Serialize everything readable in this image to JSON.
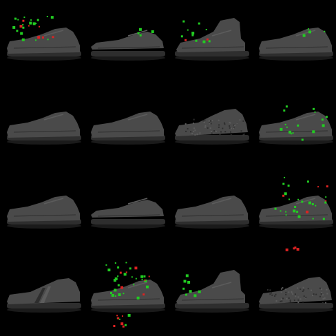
{
  "grid": {
    "rows": 4,
    "cols": 4,
    "background": "#000000",
    "shoe_colors": {
      "upper": "#4a4a4a",
      "sole": "#2e2e2e",
      "shadow": "#1a1a1a",
      "highlight": "#5c5c5c"
    },
    "marker_colors": {
      "positive": "#22cc22",
      "negative": "#dd2222"
    }
  },
  "tiles": [
    {
      "shoe": "low-top",
      "attribution": "heavy-top-left"
    },
    {
      "shoe": "slim-low",
      "attribution": "light"
    },
    {
      "shoe": "high-top",
      "attribution": "top-left"
    },
    {
      "shoe": "low-top",
      "attribution": "light"
    },
    {
      "shoe": "low-top",
      "attribution": "none"
    },
    {
      "shoe": "low-top",
      "attribution": "none"
    },
    {
      "shoe": "textured-low",
      "attribution": "none"
    },
    {
      "shoe": "low-top",
      "attribution": "right-cluster"
    },
    {
      "shoe": "low-top",
      "attribution": "none"
    },
    {
      "shoe": "slim-low",
      "attribution": "none"
    },
    {
      "shoe": "low-top",
      "attribution": "none"
    },
    {
      "shoe": "low-top",
      "attribution": "heavy-scatter"
    },
    {
      "shoe": "striped-low",
      "attribution": "none"
    },
    {
      "shoe": "low-top",
      "attribution": "heavy-center"
    },
    {
      "shoe": "high-top",
      "attribution": "left-light"
    },
    {
      "shoe": "textured-low",
      "attribution": "none"
    }
  ]
}
